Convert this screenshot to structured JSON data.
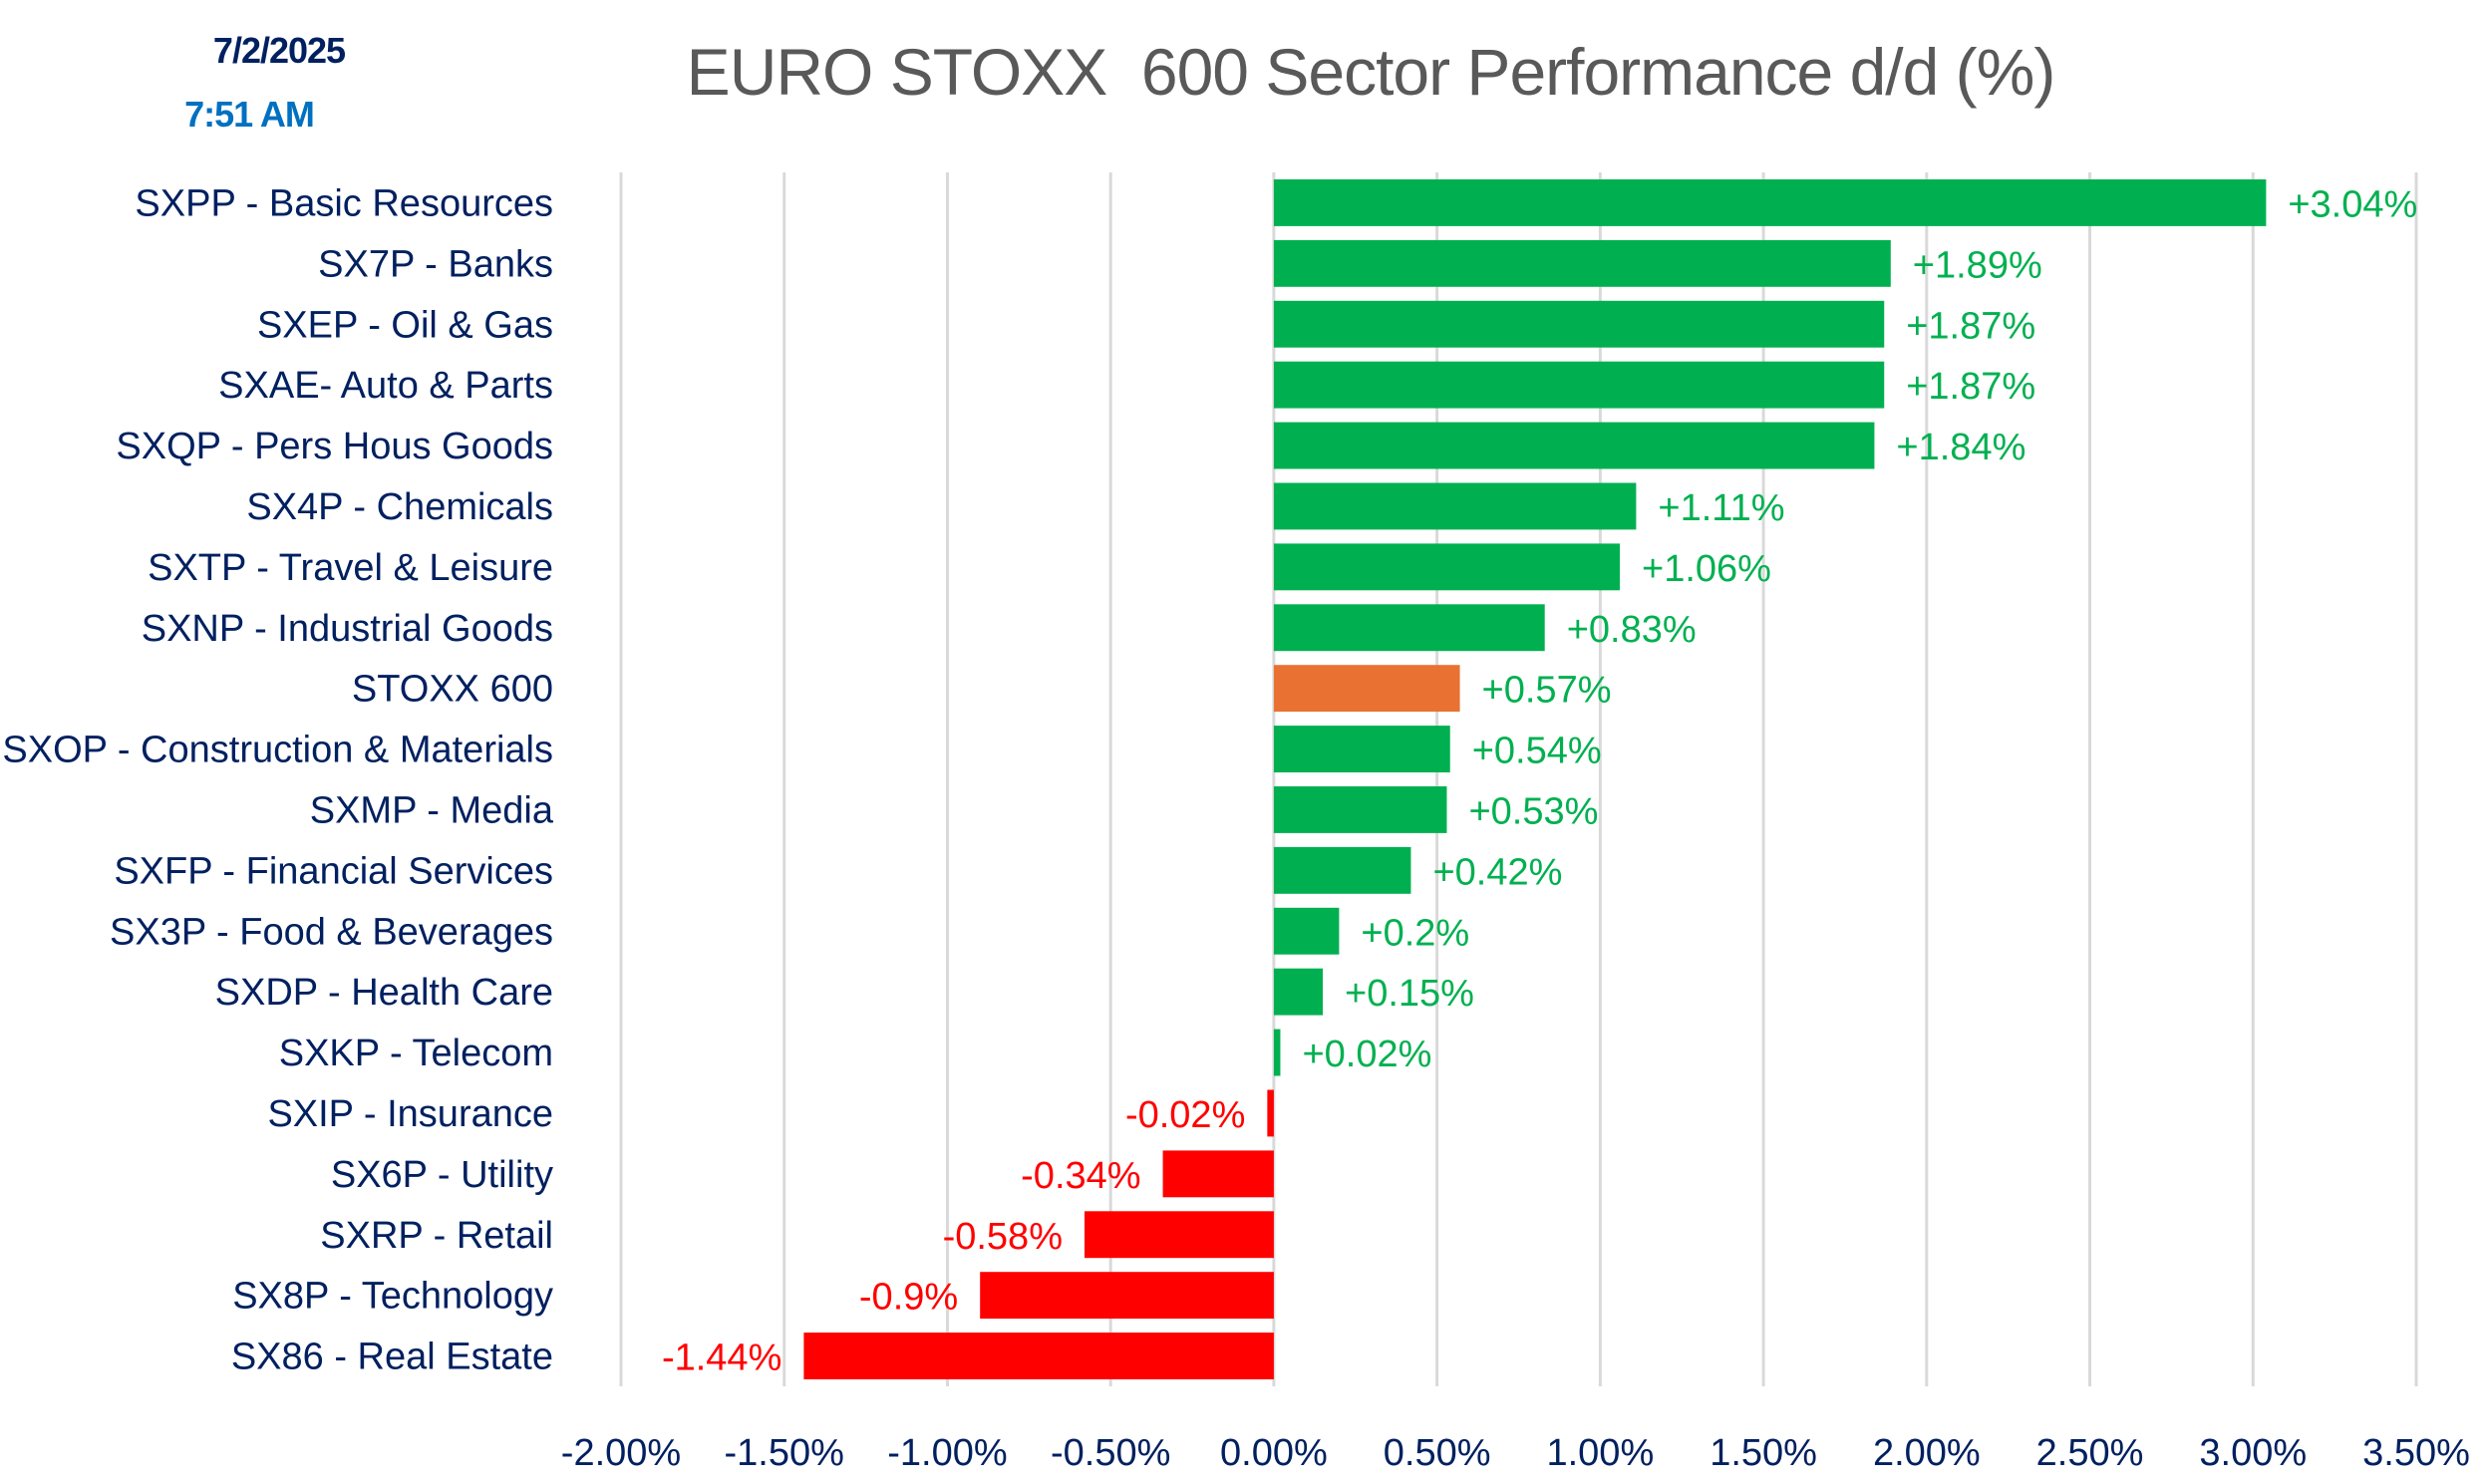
{
  "header": {
    "date": "7/2/2025",
    "time": "7:51 AM"
  },
  "colors": {
    "positive": "#00B050",
    "negative": "#FF0000",
    "benchmark": "#E97132",
    "label_text": "#002060",
    "time_text": "#0070C0",
    "title_text": "#595959",
    "gridline": "#D9D9D9"
  },
  "chart_data": {
    "type": "bar",
    "orientation": "horizontal",
    "title": "EURO STOXX  600 Sector Performance d/d (%)",
    "xlabel": "",
    "ylabel": "",
    "xlim": [
      -2.0,
      3.5
    ],
    "x_ticks": [
      -2.0,
      -1.5,
      -1.0,
      -0.5,
      0.0,
      0.5,
      1.0,
      1.5,
      2.0,
      2.5,
      3.0,
      3.5
    ],
    "x_tick_labels": [
      "-2.00%",
      "-1.50%",
      "-1.00%",
      "-0.50%",
      "0.00%",
      "0.50%",
      "1.00%",
      "1.50%",
      "2.00%",
      "2.50%",
      "3.00%",
      "3.50%"
    ],
    "grid": true,
    "legend": "none",
    "categories": [
      "SXPP - Basic Resources",
      "SX7P - Banks",
      "SXEP - Oil & Gas",
      "SXAE- Auto & Parts",
      "SXQP - Pers Hous Goods",
      "SX4P - Chemicals",
      "SXTP - Travel & Leisure",
      "SXNP - Industrial Goods",
      "STOXX 600",
      "SXOP - Construction & Materials",
      "SXMP - Media",
      "SXFP - Financial Services",
      "SX3P - Food & Beverages",
      "SXDP - Health Care",
      "SXKP - Telecom",
      "SXIP - Insurance",
      "SX6P - Utility",
      "SXRP - Retail",
      "SX8P - Technology",
      "SX86 - Real Estate"
    ],
    "values": [
      3.04,
      1.89,
      1.87,
      1.87,
      1.84,
      1.11,
      1.06,
      0.83,
      0.57,
      0.54,
      0.53,
      0.42,
      0.2,
      0.15,
      0.02,
      -0.02,
      -0.34,
      -0.58,
      -0.9,
      -1.44
    ],
    "data_labels": [
      "+3.04%",
      "+1.89%",
      "+1.87%",
      "+1.87%",
      "+1.84%",
      "+1.11%",
      "+1.06%",
      "+0.83%",
      "+0.57%",
      "+0.54%",
      "+0.53%",
      "+0.42%",
      "+0.2%",
      "+0.15%",
      "+0.02%",
      "-0.02%",
      "-0.34%",
      "-0.58%",
      "-0.9%",
      "-1.44%"
    ],
    "highlight_category": "STOXX 600"
  }
}
